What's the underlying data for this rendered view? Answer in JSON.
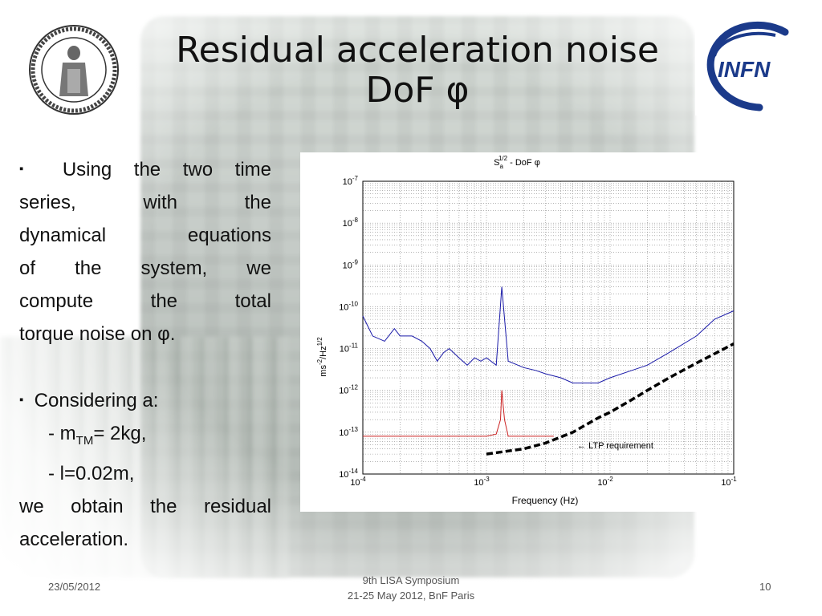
{
  "slide": {
    "title_line1": "Residual acceleration noise",
    "title_line2": "DoF φ",
    "logo_left_name": "florence-university-seal",
    "logo_right_text": "INFN"
  },
  "body": {
    "bullet1_lines": [
      "Using the two time",
      "series, with the",
      "dynamical equations",
      "of the system, we",
      "compute the total",
      "torque noise on φ."
    ],
    "bullet2_lead": "Considering a:",
    "m_prefix": "- m",
    "m_sub": "TM",
    "m_value": "= 2kg,",
    "l_line": "- l=0.02m,",
    "conclusion_line1": "we obtain the residual",
    "conclusion_line2": "acceleration.",
    "bullet_glyph": "▪"
  },
  "chart_data": {
    "type": "line",
    "title_main": "S",
    "title_sup": "1/2",
    "title_sub": "a",
    "title_rest": " - DoF φ",
    "xlabel": "Frequency (Hz)",
    "ylabel_main": "ms",
    "ylabel_sup1": "-2",
    "ylabel_mid": "/Hz",
    "ylabel_sup2": "1/2",
    "xscale": "log",
    "yscale": "log",
    "xlim": [
      0.0001,
      0.1
    ],
    "ylim": [
      1e-14,
      1e-07
    ],
    "x_ticks": [
      {
        "base": "10",
        "exp": "-4",
        "value": 0.0001
      },
      {
        "base": "10",
        "exp": "-3",
        "value": 0.001
      },
      {
        "base": "10",
        "exp": "-2",
        "value": 0.01
      },
      {
        "base": "10",
        "exp": "-1",
        "value": 0.1
      }
    ],
    "y_ticks": [
      {
        "base": "10",
        "exp": "-7",
        "value": 1e-07
      },
      {
        "base": "10",
        "exp": "-8",
        "value": 1e-08
      },
      {
        "base": "10",
        "exp": "-9",
        "value": 1e-09
      },
      {
        "base": "10",
        "exp": "-10",
        "value": 1e-10
      },
      {
        "base": "10",
        "exp": "-11",
        "value": 1e-11
      },
      {
        "base": "10",
        "exp": "-12",
        "value": 1e-12
      },
      {
        "base": "10",
        "exp": "-13",
        "value": 1e-13
      },
      {
        "base": "10",
        "exp": "-14",
        "value": 1e-14
      }
    ],
    "grid": true,
    "annotation": "LTP requirement",
    "series": [
      {
        "color": "#1a1aa8",
        "x": [
          0.0001,
          0.00012,
          0.00015,
          0.00018,
          0.0002,
          0.00025,
          0.0003,
          0.00035,
          0.0004,
          0.00045,
          0.0005,
          0.0006,
          0.0007,
          0.0008,
          0.0009,
          0.001,
          0.0012,
          0.00133,
          0.0015,
          0.0018,
          0.002,
          0.0025,
          0.003,
          0.004,
          0.005,
          0.006,
          0.008,
          0.01,
          0.015,
          0.02,
          0.03,
          0.05,
          0.07,
          0.1
        ],
        "y": [
          6e-11,
          2e-11,
          1.5e-11,
          3e-11,
          2e-11,
          2e-11,
          1.5e-11,
          1e-11,
          5e-12,
          8e-12,
          1e-11,
          6e-12,
          4e-12,
          6e-12,
          5e-12,
          6e-12,
          4e-12,
          3e-10,
          5e-12,
          4e-12,
          3.5e-12,
          3e-12,
          2.5e-12,
          2e-12,
          1.5e-12,
          1.5e-12,
          1.5e-12,
          2e-12,
          3e-12,
          4e-12,
          8e-12,
          2e-11,
          5e-11,
          8e-11
        ]
      },
      {
        "color": "#cc2222",
        "x": [
          0.0001,
          0.0005,
          0.001,
          0.0012,
          0.0013,
          0.00133,
          0.0014,
          0.0015,
          0.002,
          0.003,
          0.0035
        ],
        "y": [
          8e-14,
          8e-14,
          8e-14,
          9e-14,
          2e-13,
          1e-12,
          2e-13,
          8e-14,
          8e-14,
          8e-14,
          8e-14
        ]
      },
      {
        "style": "dashed",
        "color": "#000000",
        "x": [
          0.001,
          0.002,
          0.003,
          0.005,
          0.008,
          0.01,
          0.015,
          0.02,
          0.03,
          0.05,
          0.07,
          0.1
        ],
        "y": [
          3e-14,
          4e-14,
          5.5e-14,
          1e-13,
          2.2e-13,
          3e-13,
          6e-13,
          1e-12,
          2e-12,
          4.5e-12,
          7.5e-12,
          1.3e-11
        ]
      }
    ]
  },
  "footer": {
    "date": "23/05/2012",
    "event_line1": "9th LISA Symposium",
    "event_line2": "21-25 May 2012, BnF Paris",
    "page_number": "10"
  }
}
